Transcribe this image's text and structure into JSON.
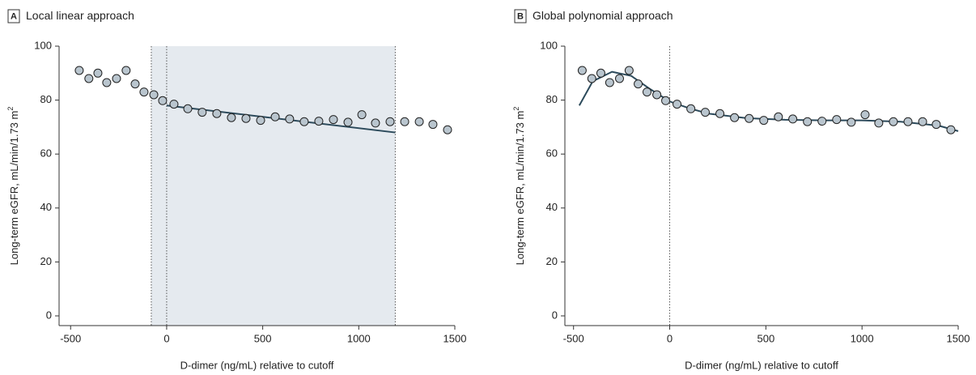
{
  "chart_data": [
    {
      "type": "scatter",
      "panel": "A",
      "title": "Local linear approach",
      "xlabel": "D-dimer (ng/mL) relative to cutoff",
      "ylabel": "Long-term eGFR, mL/min/1.73 m",
      "ylabel_sup": "2",
      "x": [
        -455,
        -405,
        -358,
        -312,
        -261,
        -211,
        -164,
        -118,
        -67,
        -21,
        38,
        110,
        185,
        261,
        337,
        413,
        489,
        565,
        640,
        716,
        792,
        868,
        944,
        1016,
        1087,
        1163,
        1239,
        1315,
        1386,
        1462
      ],
      "y": [
        91,
        88,
        90,
        86.5,
        88,
        91,
        86,
        83,
        82,
        79.8,
        78.5,
        76.8,
        75.5,
        75,
        73.5,
        73.2,
        72.5,
        73.8,
        73,
        72,
        72.2,
        72.8,
        71.8,
        74.6,
        71.5,
        72,
        72,
        72,
        71,
        69
      ],
      "fit": {
        "x": [
          0,
          1190
        ],
        "y": [
          78,
          68
        ]
      },
      "cutoffs": [
        -80,
        0,
        1190
      ],
      "shade": [
        -80,
        1190
      ],
      "xlim": [
        -560,
        1500
      ],
      "ylim": [
        -3.6,
        100
      ],
      "xticks": [
        -500,
        0,
        500,
        1000,
        1500
      ],
      "yticks": [
        0,
        20,
        40,
        60,
        80,
        100
      ],
      "point_color": "#b9c5ce",
      "line_color": "#2c4a5b",
      "shade_color": "#e5eaef"
    },
    {
      "type": "scatter",
      "panel": "B",
      "title": "Global polynomial approach",
      "xlabel": "D-dimer (ng/mL) relative to cutoff",
      "ylabel": "Long-term eGFR, mL/min/1.73 m",
      "ylabel_sup": "2",
      "x": [
        -455,
        -405,
        -358,
        -312,
        -261,
        -211,
        -164,
        -118,
        -67,
        -21,
        38,
        110,
        185,
        261,
        337,
        413,
        489,
        565,
        640,
        716,
        792,
        868,
        944,
        1016,
        1087,
        1163,
        1239,
        1315,
        1386,
        1462
      ],
      "y": [
        91,
        88,
        90,
        86.5,
        88,
        91,
        86,
        83,
        82,
        79.8,
        78.5,
        76.8,
        75.5,
        75,
        73.5,
        73.2,
        72.5,
        73.8,
        73,
        72,
        72.2,
        72.8,
        71.8,
        74.6,
        71.5,
        72,
        72,
        72,
        71,
        69
      ],
      "fit": {
        "x": [
          -470,
          -400,
          -300,
          -200,
          -100,
          0,
          100,
          200,
          400,
          600,
          800,
          1000,
          1200,
          1400,
          1500
        ],
        "y": [
          78,
          87,
          90.5,
          89,
          84,
          79.5,
          77,
          75,
          73.3,
          72.7,
          72.5,
          72.5,
          72,
          70.5,
          68.5
        ]
      },
      "cutoffs": [
        0
      ],
      "xlim": [
        -545,
        1500
      ],
      "ylim": [
        -3.6,
        100
      ],
      "xticks": [
        -500,
        0,
        500,
        1000,
        1500
      ],
      "yticks": [
        0,
        20,
        40,
        60,
        80,
        100
      ],
      "point_color": "#b9c5ce",
      "line_color": "#2c4a5b"
    }
  ]
}
